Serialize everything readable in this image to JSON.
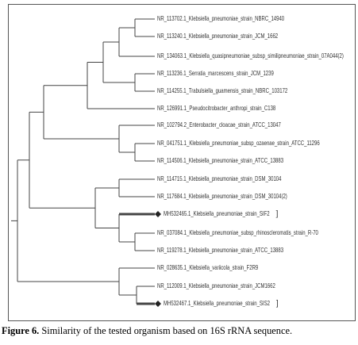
{
  "tree": {
    "leaves": [
      {
        "label": "NR_113702.1_Klebsiella_pneumoniae_strain_NBRC_14940"
      },
      {
        "label": "NR_113240.1_Klebsiella_pneumoniae_strain_JCM_1662"
      },
      {
        "label": "NR_134063.1_Klebsiella_quasipneumoniae_subsp_similipneumoniae_strain_07A044(2)"
      },
      {
        "label": "NR_113236.1_Serratia_marcescens_strain_JCM_1239"
      },
      {
        "label": "NR_114255.1_Trabulsiella_guamensis_strain_NBRC_103172"
      },
      {
        "label": "NR_126991.1_Pseudocitrobacter_anthropi_strain_C138"
      },
      {
        "label": "NR_102794.2_Enterobacter_cloacae_strain_ATCC_13047"
      },
      {
        "label": "NR_041751.1_Klebsiella_pneumoniae_subsp_ozaenae_strain_ATCC_11296"
      },
      {
        "label": "NR_114506.1_Klebsiella_pneumoniae_strain_ATCC_13883"
      },
      {
        "label": "NR_114715.1_Klebsiella_pneumoniae_strain_DSM_30104"
      },
      {
        "label": "NR_117684.1_Klebsiella_pneumoniae_strain_DSM_30104(2)"
      },
      {
        "label": "MH532465.1_Klebsiella_pneumoniae_strain_SIF2",
        "bracket": "]"
      },
      {
        "label": "NR_037084.1_Klebsiella_pneumoniae_subsp_rhinoscleromatis_strain_R-70"
      },
      {
        "label": "NR_119278.1_Klebsiella_pneumoniae_strain_ATCC_13883"
      },
      {
        "label": "NR_028635.1_Klebsiella_variicola_strain_F2R9"
      },
      {
        "label": "NR_112009.1_Klebsiella_pneumoniae_strain_JCM1662"
      },
      {
        "label": "MH532467.1_Klebsiella_pneumoniae_strain_SIS2",
        "bracket": "]"
      }
    ]
  },
  "caption": {
    "label": "Figure 6.",
    "text": "Similarity of the tested organism based on 16S rRNA sequence."
  }
}
